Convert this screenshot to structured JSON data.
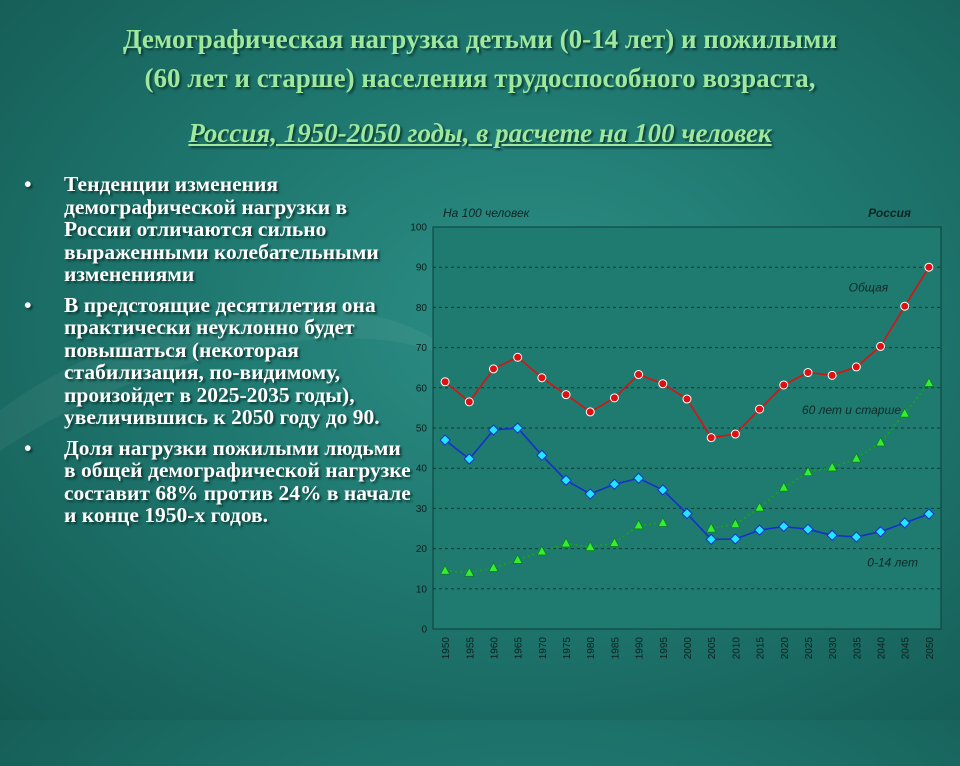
{
  "slide": {
    "title_line1": "Демографическая нагрузка детьми (0-14 лет) и пожилыми",
    "title_line2": "(60 лет и старше) населения трудоспособного возраста,",
    "subtitle": "Россия, 1950-2050 годы, в расчете на 100 человек",
    "bullet_symbol": "•",
    "bullets": [
      "Тенденции изменения демографической нагрузки в России отличаются сильно выраженными колебательными изменениями",
      "В предстоящие десятилетия она практически неуклонно будет повышаться (некоторая стабилизация, по-видимому, произойдет в 2025-2035 годы), увеличившись к 2050 году до 90.",
      "Доля нагрузки пожилыми людьми в общей демографической нагрузке составит 68% против 24% в начале и конце 1950-х годов."
    ]
  },
  "chart_data": {
    "type": "line",
    "title": "",
    "header_left": "На 100 человек",
    "header_right": "Россия",
    "categories": [
      "1950",
      "1955",
      "1960",
      "1965",
      "1970",
      "1975",
      "1980",
      "1985",
      "1990",
      "1995",
      "2000",
      "2005",
      "2010",
      "2015",
      "2020",
      "2025",
      "2030",
      "2035",
      "2040",
      "2045",
      "2050"
    ],
    "yticks": [
      "0",
      "10",
      "20",
      "30",
      "40",
      "50",
      "60",
      "70",
      "80",
      "90",
      "100"
    ],
    "ylim": [
      0,
      100
    ],
    "grid": true,
    "series": [
      {
        "name": "Общая",
        "color": "#dd1111",
        "marker": "circle",
        "values": [
          61.5,
          56.5,
          64.7,
          67.6,
          62.5,
          58.3,
          54.0,
          57.5,
          63.3,
          61.0,
          57.2,
          47.6,
          48.5,
          54.7,
          60.7,
          63.8,
          63.1,
          65.2,
          70.3,
          80.3,
          90.0
        ]
      },
      {
        "name": "60 лет и старше",
        "color": "#11aa11",
        "marker": "triangle",
        "values": [
          14.5,
          14.0,
          15.2,
          17.2,
          19.3,
          21.3,
          20.4,
          21.4,
          25.8,
          26.4,
          null,
          25.0,
          26.1,
          30.2,
          35.2,
          39.0,
          40.2,
          42.4,
          46.4,
          53.6,
          61.2
        ]
      },
      {
        "name": "0-14 лет",
        "color": "#1133cc",
        "marker": "diamond",
        "values": [
          47.0,
          42.3,
          49.5,
          50.0,
          43.2,
          37.0,
          33.6,
          36.0,
          37.5,
          34.6,
          28.7,
          22.3,
          22.4,
          24.6,
          25.5,
          24.8,
          23.3,
          22.9,
          24.2,
          26.4,
          28.6
        ]
      }
    ]
  }
}
